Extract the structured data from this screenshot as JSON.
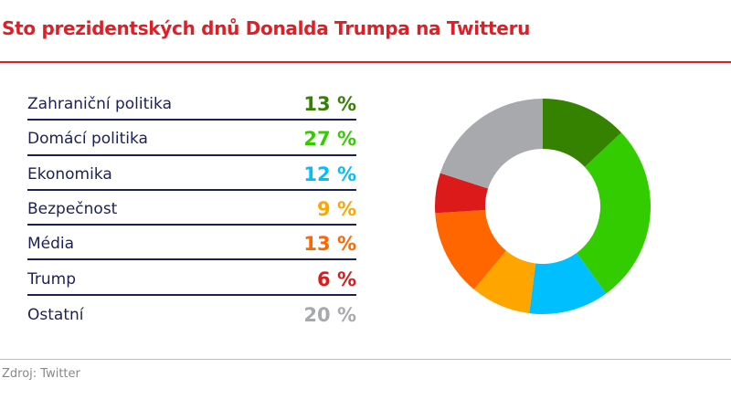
{
  "title": "Sto prezidentských dnů Donalda Trumpa na Twitteru",
  "source": "Zdroj: Twitter",
  "chart_data": {
    "type": "pie",
    "donut": true,
    "title": "Sto prezidentských dnů Donalda Trumpa na Twitteru",
    "categories": [
      "Zahraniční politika",
      "Domácí politika",
      "Ekonomika",
      "Bezpečnost",
      "Média",
      "Trump",
      "Ostatní"
    ],
    "values": [
      13,
      27,
      12,
      9,
      13,
      6,
      20
    ],
    "labels": [
      "13 %",
      "27 %",
      "12 %",
      "9 %",
      "13 %",
      "6 %",
      "20 %"
    ],
    "colors": [
      "#358200",
      "#33cc00",
      "#00bfff",
      "#ffa500",
      "#ff6600",
      "#dd1a1a",
      "#a7a9ac"
    ]
  }
}
